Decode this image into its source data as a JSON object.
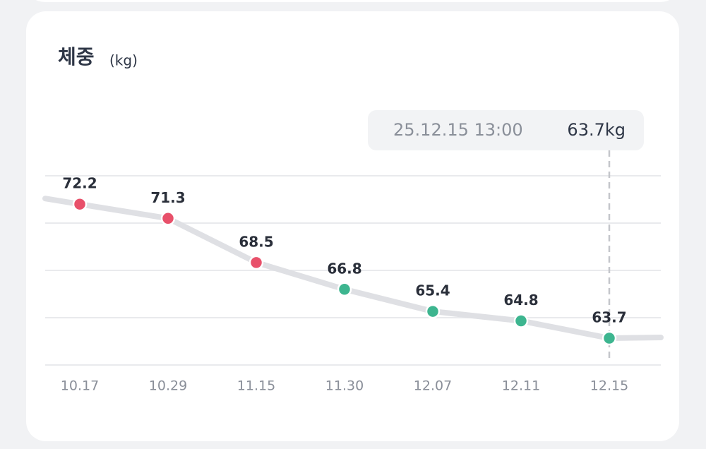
{
  "chart_data": {
    "type": "line",
    "title": "체중",
    "unit": "(kg)",
    "categories": [
      "10.17",
      "10.29",
      "11.15",
      "11.30",
      "12.07",
      "12.11",
      "12.15"
    ],
    "values": [
      72.2,
      71.3,
      68.5,
      66.8,
      65.4,
      64.8,
      63.7
    ],
    "point_colors": [
      "#e8506a",
      "#e8506a",
      "#e8506a",
      "#3db58f",
      "#3db58f",
      "#3db58f",
      "#3db58f"
    ],
    "line_color": "#dfe0e4",
    "ylim": [
      62,
      74
    ],
    "grid_lines": [
      62,
      65,
      68,
      71,
      74
    ],
    "selected_index": 6,
    "tooltip": {
      "datetime": "25.12.15 13:00",
      "value": "63.7kg"
    }
  }
}
